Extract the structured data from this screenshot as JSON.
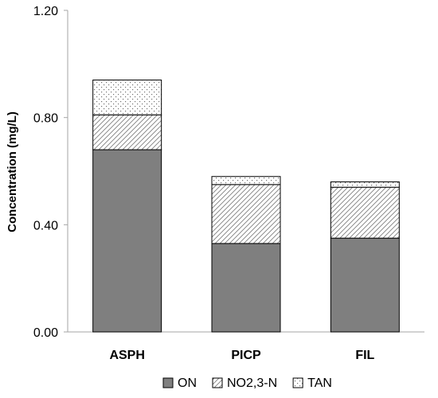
{
  "chart_data": {
    "type": "bar",
    "stacked": true,
    "categories": [
      "ASPH",
      "PICP",
      "FIL"
    ],
    "series": [
      {
        "name": "ON",
        "values": [
          0.68,
          0.33,
          0.35
        ],
        "fill": "#7f7f7f",
        "pattern": "solid"
      },
      {
        "name": "NO2,3-N",
        "values": [
          0.13,
          0.22,
          0.19
        ],
        "fill": "#ffffff",
        "pattern": "diagonal-hatch"
      },
      {
        "name": "TAN",
        "values": [
          0.13,
          0.03,
          0.02
        ],
        "fill": "#ffffff",
        "pattern": "dots"
      }
    ],
    "ylabel": "Concentration (mg/L)",
    "xlabel": "",
    "ylim": [
      0,
      1.2
    ],
    "yticks": [
      "0.00",
      "0.40",
      "0.80",
      "1.20"
    ],
    "grid": false,
    "legend_position": "bottom"
  }
}
